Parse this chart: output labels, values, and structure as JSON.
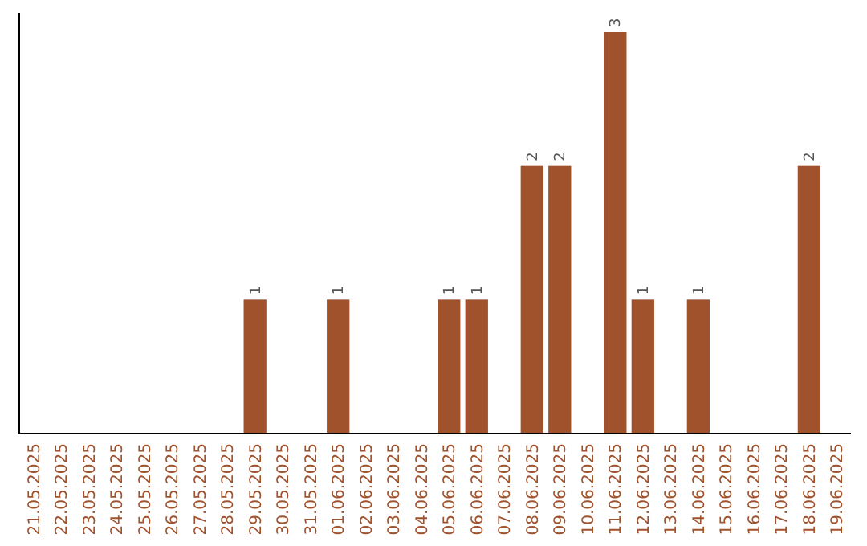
{
  "chart_data": {
    "type": "bar",
    "categories": [
      "21.05.2025",
      "22.05.2025",
      "23.05.2025",
      "24.05.2025",
      "25.05.2025",
      "26.05.2025",
      "27.05.2025",
      "28.05.2025",
      "29.05.2025",
      "30.05.2025",
      "31.05.2025",
      "01.06.2025",
      "02.06.2025",
      "03.06.2025",
      "04.06.2025",
      "05.06.2025",
      "06.06.2025",
      "07.06.2025",
      "08.06.2025",
      "09.06.2025",
      "10.06.2025",
      "11.06.2025",
      "12.06.2025",
      "13.06.2025",
      "14.06.2025",
      "15.06.2025",
      "16.06.2025",
      "17.06.2025",
      "18.06.2025",
      "19.06.2025"
    ],
    "values": [
      0,
      0,
      0,
      0,
      0,
      0,
      0,
      0,
      1,
      0,
      0,
      1,
      0,
      0,
      0,
      1,
      1,
      0,
      2,
      2,
      0,
      3,
      1,
      0,
      1,
      0,
      0,
      0,
      2,
      0
    ],
    "value_labels": [
      null,
      null,
      null,
      null,
      null,
      null,
      null,
      null,
      "1",
      null,
      null,
      "1",
      null,
      null,
      null,
      "1",
      "1",
      null,
      "2",
      "2",
      null,
      "3",
      "1",
      null,
      "1",
      null,
      null,
      null,
      "2",
      null
    ],
    "color": "#a0522d"
  }
}
